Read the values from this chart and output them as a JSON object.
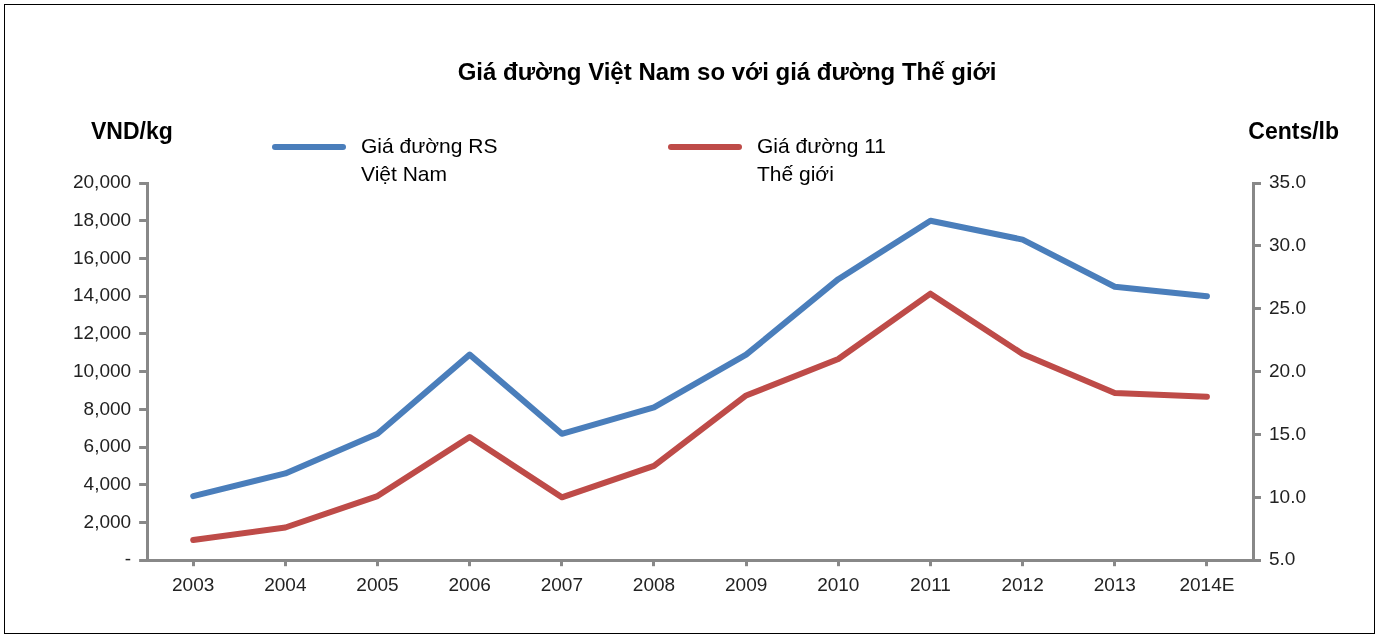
{
  "chart_data": {
    "type": "line",
    "title": "Giá đường Việt Nam so với giá đường Thế giới",
    "ylabel": "VND/kg",
    "y2label": "Cents/lb",
    "categories": [
      "2003",
      "2004",
      "2005",
      "2006",
      "2007",
      "2008",
      "2009",
      "2010",
      "2011",
      "2012",
      "2013",
      "2014E"
    ],
    "series": [
      {
        "name": "Giá đường RS Việt Nam",
        "color": "#4a7ebb",
        "values": [
          3400,
          4600,
          6700,
          10900,
          6700,
          8100,
          10900,
          14900,
          18000,
          17000,
          14500,
          14000
        ]
      },
      {
        "name": "Giá đường 11 Thế giới",
        "color": "#be4b48",
        "axis": "y2",
        "values": [
          6.6,
          7.6,
          10.1,
          14.8,
          10.0,
          12.5,
          18.1,
          21.0,
          26.2,
          21.4,
          18.3,
          18.0
        ]
      }
    ],
    "ylim": [
      0,
      20000
    ],
    "yticks": [
      {
        "value": 0,
        "label": "-"
      },
      {
        "value": 2000,
        "label": "2,000"
      },
      {
        "value": 4000,
        "label": "4,000"
      },
      {
        "value": 6000,
        "label": "6,000"
      },
      {
        "value": 8000,
        "label": "8,000"
      },
      {
        "value": 10000,
        "label": "10,000"
      },
      {
        "value": 12000,
        "label": "12,000"
      },
      {
        "value": 14000,
        "label": "14,000"
      },
      {
        "value": 16000,
        "label": "16,000"
      },
      {
        "value": 18000,
        "label": "18,000"
      },
      {
        "value": 20000,
        "label": "20,000"
      }
    ],
    "y2lim": [
      5,
      35
    ],
    "y2ticks": [
      {
        "value": 5,
        "label": "5.0"
      },
      {
        "value": 10,
        "label": "10.0"
      },
      {
        "value": 15,
        "label": "15.0"
      },
      {
        "value": 20,
        "label": "20.0"
      },
      {
        "value": 25,
        "label": "25.0"
      },
      {
        "value": 30,
        "label": "30.0"
      },
      {
        "value": 35,
        "label": "35.0"
      }
    ],
    "grid": false,
    "legend": "top",
    "marker": "none",
    "line_style": "solid"
  }
}
